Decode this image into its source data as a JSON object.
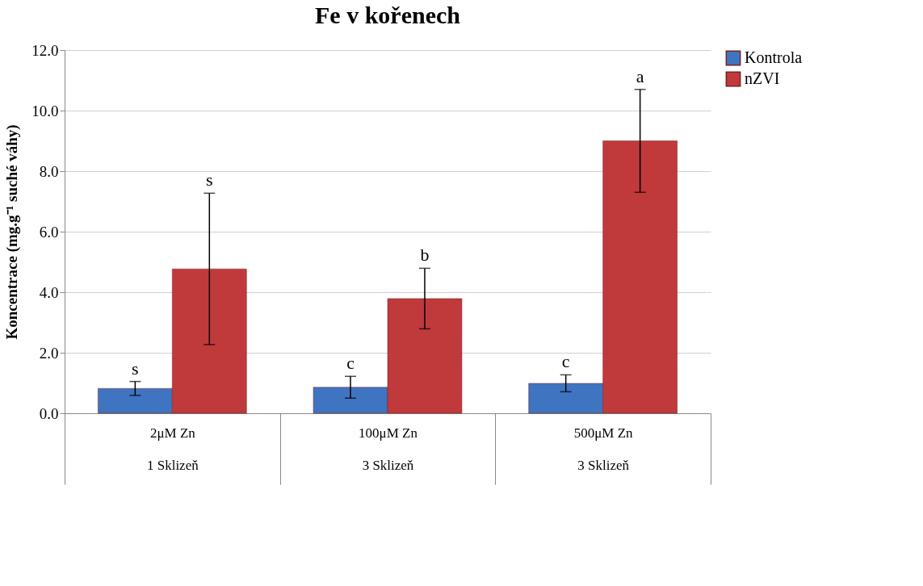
{
  "chart_data": {
    "type": "bar",
    "title": "Fe v kořenech",
    "ylabel": "Koncentrace (mg.g⁻¹ suché váhy)",
    "categories": [
      "2μM Zn\n1 Sklizeň",
      "100μM Zn\n3 Sklizeň",
      "500μM Zn\n3 Sklizeň"
    ],
    "series": [
      {
        "name": "Kontrola",
        "color": "#3f74c0",
        "values": [
          0.82,
          0.86,
          0.99
        ],
        "errors": [
          0.23,
          0.36,
          0.28
        ]
      },
      {
        "name": "nZVI",
        "color": "#c0393b",
        "values": [
          4.77,
          3.79,
          9.0
        ],
        "errors": [
          2.5,
          1.0,
          1.7
        ]
      }
    ],
    "ylim": [
      0,
      12
    ],
    "yticks": [
      {
        "value": 0,
        "label": "0.0"
      },
      {
        "value": 2,
        "label": "2.0"
      },
      {
        "value": 4,
        "label": "4.0"
      },
      {
        "value": 6,
        "label": "6.0"
      },
      {
        "value": 8,
        "label": "8.0"
      },
      {
        "value": 10,
        "label": "10.0"
      },
      {
        "value": 12,
        "label": "12.0"
      }
    ],
    "grid": "y",
    "legend": "right",
    "annotations": [
      "s",
      "s",
      "c",
      "b",
      "c",
      "a"
    ]
  }
}
